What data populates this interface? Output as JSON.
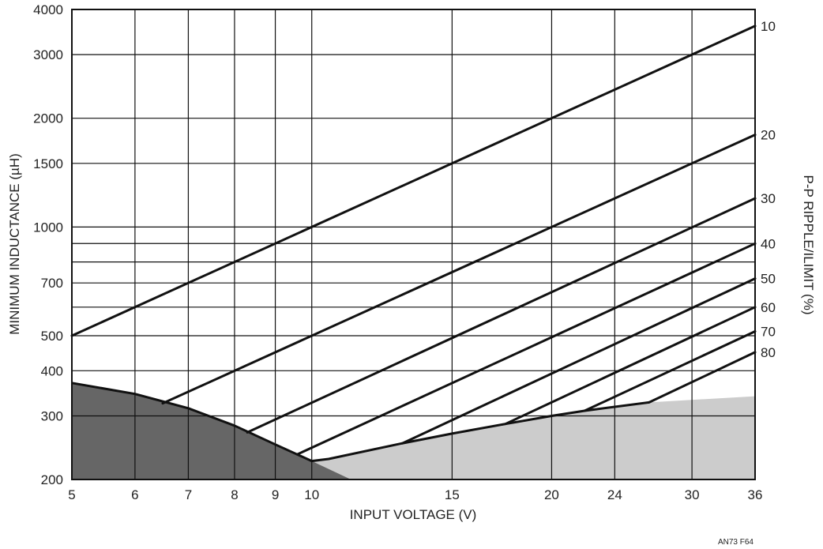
{
  "chart_data": {
    "type": "line",
    "xlabel": "INPUT VOLTAGE (V)",
    "ylabel": "MINIMUM INDUCTANCE (µH)",
    "y2label": "P-P RIPPLE/ILIMIT (%)",
    "xscale": "log",
    "yscale": "log",
    "xlim": [
      5,
      36
    ],
    "ylim": [
      200,
      4000
    ],
    "grid": true,
    "x_ticks": [
      5,
      6,
      7,
      8,
      9,
      10,
      15,
      20,
      24,
      30,
      36
    ],
    "y_ticks": [
      200,
      300,
      400,
      500,
      700,
      1000,
      1500,
      2000,
      3000,
      4000
    ],
    "y_gridlines": [
      200,
      300,
      400,
      500,
      600,
      700,
      800,
      900,
      1000,
      1500,
      2000,
      3000,
      4000
    ],
    "series": [
      {
        "name": "10",
        "points": [
          [
            5,
            500
          ],
          [
            36,
            3600
          ]
        ]
      },
      {
        "name": "20",
        "points": [
          [
            6.5,
            325
          ],
          [
            36,
            1800
          ]
        ]
      },
      {
        "name": "30",
        "points": [
          [
            8.3,
            270
          ],
          [
            36,
            1200
          ]
        ]
      },
      {
        "name": "40",
        "points": [
          [
            9.6,
            235
          ],
          [
            36,
            900
          ]
        ]
      },
      {
        "name": "50",
        "points": [
          [
            13,
            252
          ],
          [
            36,
            720
          ]
        ]
      },
      {
        "name": "60",
        "points": [
          [
            17.5,
            285
          ],
          [
            36,
            600
          ]
        ]
      },
      {
        "name": "70",
        "points": [
          [
            22,
            310
          ],
          [
            36,
            514
          ]
        ]
      },
      {
        "name": "80",
        "points": [
          [
            26.5,
            327
          ],
          [
            36,
            450
          ]
        ]
      }
    ],
    "boundary": [
      [
        5,
        370
      ],
      [
        6,
        345
      ],
      [
        7,
        315
      ],
      [
        8,
        282
      ],
      [
        9,
        250
      ],
      [
        10,
        225
      ],
      [
        10.5,
        228
      ],
      [
        13,
        252
      ],
      [
        15,
        268
      ],
      [
        17.5,
        285
      ],
      [
        20,
        300
      ],
      [
        22,
        310
      ],
      [
        26.5,
        327
      ]
    ],
    "dark_region": [
      [
        5,
        370
      ],
      [
        6,
        345
      ],
      [
        7,
        315
      ],
      [
        8,
        282
      ],
      [
        9,
        250
      ],
      [
        10,
        225
      ],
      [
        11.2,
        200
      ],
      [
        5,
        200
      ]
    ],
    "light_region": [
      [
        10,
        225
      ],
      [
        10.5,
        228
      ],
      [
        13,
        252
      ],
      [
        15,
        268
      ],
      [
        17.5,
        285
      ],
      [
        20,
        300
      ],
      [
        22,
        310
      ],
      [
        26.5,
        327
      ],
      [
        36,
        340
      ],
      [
        36,
        200
      ],
      [
        11.2,
        200
      ]
    ],
    "dark_color": "#666666",
    "light_color": "#cccccc"
  },
  "figure_id": "AN73 F64"
}
